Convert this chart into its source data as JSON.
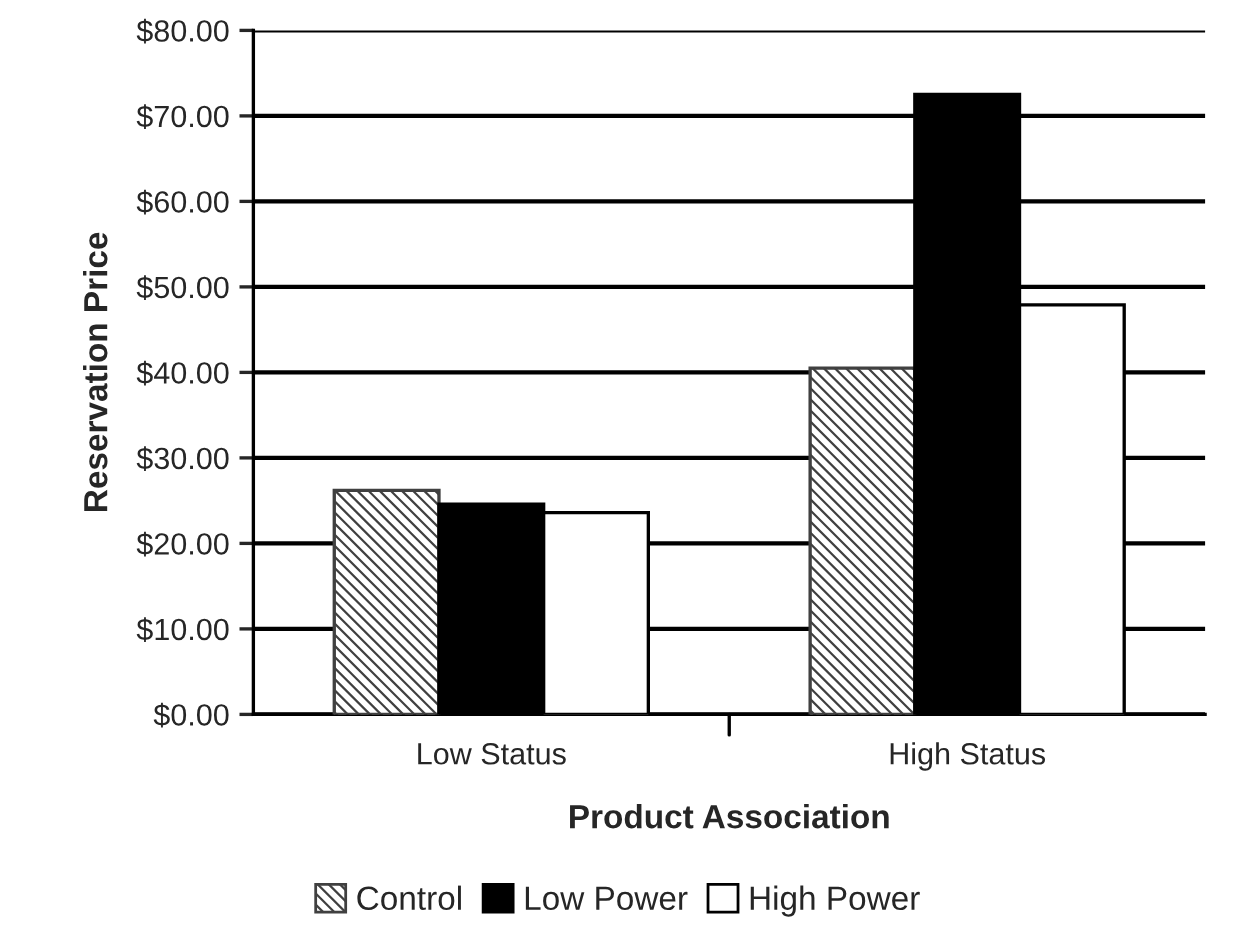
{
  "chart_data": {
    "type": "bar",
    "xlabel": "Product Association",
    "ylabel": "Reservation Price",
    "categories": [
      "Low Status",
      "High Status"
    ],
    "series": [
      {
        "name": "Control",
        "color": "#404040",
        "values": [
          26.2,
          40.5
        ]
      },
      {
        "name": "Low Power",
        "color": "#000000",
        "values": [
          24.6,
          72.5
        ]
      },
      {
        "name": "High Power",
        "color": "#ffffff",
        "values": [
          23.6,
          47.9
        ]
      }
    ],
    "ylim": [
      0,
      80
    ],
    "yticks": [
      {
        "value": 0,
        "label": "$0.00"
      },
      {
        "value": 10,
        "label": "$10.00"
      },
      {
        "value": 20,
        "label": "$20.00"
      },
      {
        "value": 30,
        "label": "$30.00"
      },
      {
        "value": 40,
        "label": "$40.00"
      },
      {
        "value": 50,
        "label": "$50.00"
      },
      {
        "value": 60,
        "label": "$60.00"
      },
      {
        "value": 70,
        "label": "$70.00"
      },
      {
        "value": 80,
        "label": "$80.00"
      }
    ],
    "grid": "y",
    "legend": "bottom"
  }
}
